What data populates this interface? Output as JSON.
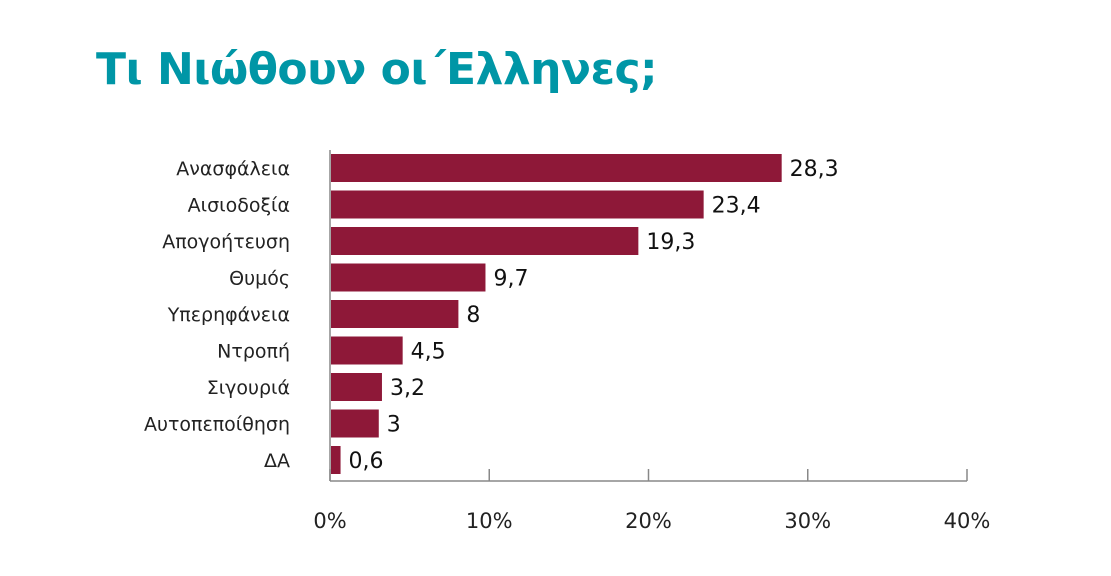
{
  "chart_data": {
    "type": "bar",
    "orientation": "horizontal",
    "title": "Τι Νιώθουν οι΄Ελληνες;",
    "categories": [
      "Ανασφάλεια",
      "Αισιοδοξία",
      "Απογοήτευση",
      "Θυμός",
      "Υπερηφάνεια",
      "Ντροπή",
      "Σιγουριά",
      "Αυτοπεποίθηση",
      "ΔΑ"
    ],
    "values": [
      28.3,
      23.4,
      19.3,
      9.7,
      8,
      4.5,
      3.2,
      3,
      0.6
    ],
    "value_labels": [
      "28,3",
      "23,4",
      "19,3",
      "9,7",
      "8",
      "4,5",
      "3,2",
      "3",
      "0,6"
    ],
    "xlim": [
      0,
      40
    ],
    "xticks": [
      0,
      10,
      20,
      30,
      40
    ],
    "xtick_labels": [
      "0%",
      "10%",
      "20%",
      "30%",
      "40%"
    ],
    "xlabel": "",
    "ylabel": "",
    "grid": false,
    "colors": {
      "bar": "#8e1838",
      "title": "#0096a6",
      "axis": "#888888"
    }
  }
}
